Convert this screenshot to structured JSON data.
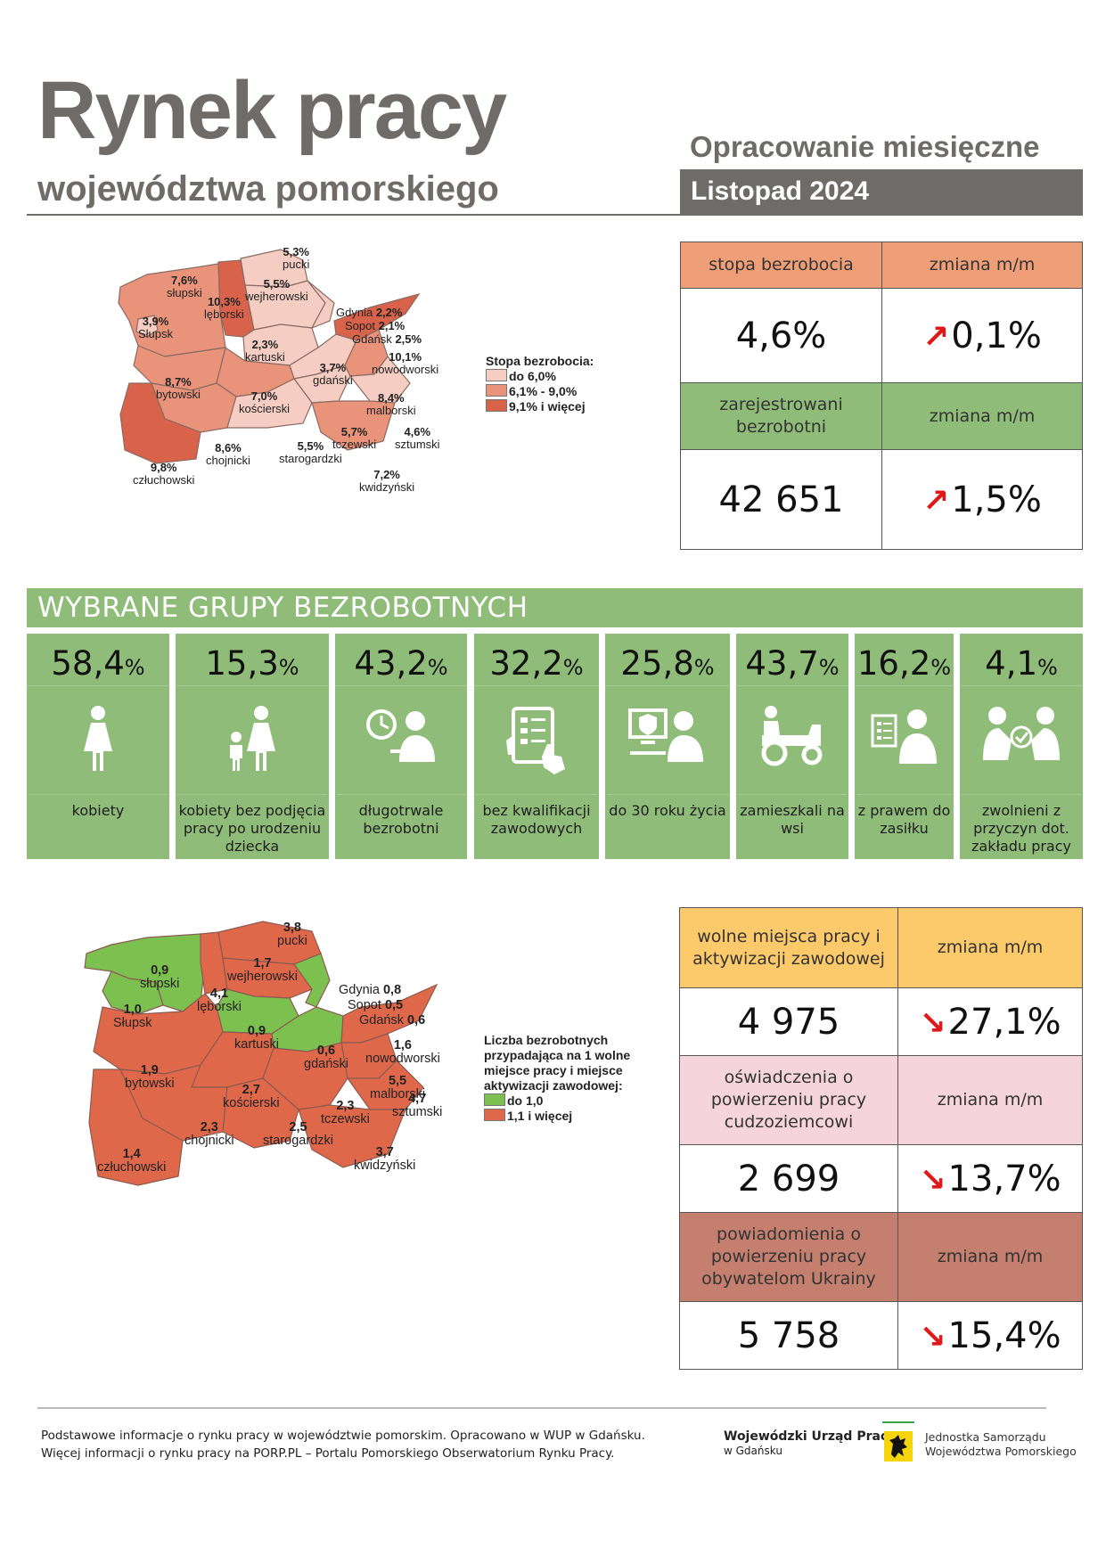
{
  "header": {
    "title": "Rynek pracy",
    "subtitle": "województwa pomorskiego",
    "report_type": "Opracowanie miesięczne",
    "period": "Listopad 2024"
  },
  "map_unemployment": {
    "legend_title": "Stopa bezrobocia:",
    "legend_items": [
      {
        "label": "do 6,0%",
        "color": "#f6cdc2"
      },
      {
        "label": "6,1% - 9,0%",
        "color": "#e8937a"
      },
      {
        "label": "9,1% i więcej",
        "color": "#d8634a"
      }
    ],
    "regions": [
      {
        "name": "pucki",
        "value": "5,3%"
      },
      {
        "name": "słupski",
        "value": "7,6%"
      },
      {
        "name": "wejherowski",
        "value": "5,5%"
      },
      {
        "name": "lęborski",
        "value": "10,3%"
      },
      {
        "name": "Słupsk",
        "value": "3,9%"
      },
      {
        "name": "Gdynia",
        "value": "2,2%"
      },
      {
        "name": "Sopot",
        "value": "2,1%"
      },
      {
        "name": "Gdańsk",
        "value": "2,5%"
      },
      {
        "name": "kartuski",
        "value": "2,3%"
      },
      {
        "name": "nowodworski",
        "value": "10,1%"
      },
      {
        "name": "bytowski",
        "value": "8,7%"
      },
      {
        "name": "gdański",
        "value": "3,7%"
      },
      {
        "name": "kościerski",
        "value": "7,0%"
      },
      {
        "name": "malborski",
        "value": "8,4%"
      },
      {
        "name": "tczewski",
        "value": "5,7%"
      },
      {
        "name": "sztumski",
        "value": "4,6%"
      },
      {
        "name": "chojnicki",
        "value": "8,6%"
      },
      {
        "name": "starogardzki",
        "value": "5,5%"
      },
      {
        "name": "człuchowski",
        "value": "9,8%"
      },
      {
        "name": "kwidzyński",
        "value": "7,2%"
      }
    ]
  },
  "stats_top": {
    "rows": [
      {
        "header": "stopa bezrobocia",
        "change_header": "zmiana m/m",
        "value": "4,6%",
        "change": "0,1%",
        "direction": "up",
        "header_color": "#ef9f78"
      },
      {
        "header": "zarejestrowani bezrobotni",
        "change_header": "zmiana m/m",
        "value": "42 651",
        "change": "1,5%",
        "direction": "up",
        "header_color": "#8fbc78"
      }
    ]
  },
  "groups": {
    "title": "WYBRANE GRUPY BEZROBOTNYCH",
    "items": [
      {
        "value": "58,4",
        "unit": "%",
        "icon": "woman-icon",
        "label": "kobiety"
      },
      {
        "value": "15,3",
        "unit": "%",
        "icon": "mother-child-icon",
        "label": "kobiety bez podjęcia pracy po urodzeniu dziecka"
      },
      {
        "value": "43,2",
        "unit": "%",
        "icon": "clock-person-icon",
        "label": "długotrwale bezrobotni"
      },
      {
        "value": "32,2",
        "unit": "%",
        "icon": "tablet-checklist-icon",
        "label": "bez kwalifikacji zawodowych"
      },
      {
        "value": "25,8",
        "unit": "%",
        "icon": "young-person-computer-icon",
        "label": "do 30 roku życia"
      },
      {
        "value": "43,7",
        "unit": "%",
        "icon": "tractor-icon",
        "label": "zamieszkali na wsi"
      },
      {
        "value": "16,2",
        "unit": "%",
        "icon": "benefit-person-icon",
        "label": "z prawem do zasiłku"
      },
      {
        "value": "4,1",
        "unit": "%",
        "icon": "dismissed-people-icon",
        "label": "zwolnieni z przyczyn dot. zakładu pracy"
      }
    ]
  },
  "map_offers": {
    "legend_title": "Liczba bezrobotnych przypadająca na 1 wolne miejsce pracy i miejsce aktywizacji zawodowej:",
    "legend_items": [
      {
        "label": "do 1,0",
        "color": "#7cc04f"
      },
      {
        "label": "1,1 i więcej",
        "color": "#e0684a"
      }
    ],
    "regions": [
      {
        "name": "pucki",
        "value": "3,8"
      },
      {
        "name": "słupski",
        "value": "0,9"
      },
      {
        "name": "wejherowski",
        "value": "1,7"
      },
      {
        "name": "lęborski",
        "value": "4,1"
      },
      {
        "name": "Słupsk",
        "value": "1,0"
      },
      {
        "name": "Gdynia",
        "value": "0,8"
      },
      {
        "name": "Sopot",
        "value": "0,5"
      },
      {
        "name": "Gdańsk",
        "value": "0,6"
      },
      {
        "name": "kartuski",
        "value": "0,9"
      },
      {
        "name": "gdański",
        "value": "0,6"
      },
      {
        "name": "nowodworski",
        "value": "1,6"
      },
      {
        "name": "bytowski",
        "value": "1,9"
      },
      {
        "name": "kościerski",
        "value": "2,7"
      },
      {
        "name": "malborski",
        "value": "5,5"
      },
      {
        "name": "tczewski",
        "value": "2,3"
      },
      {
        "name": "sztumski",
        "value": "4,7"
      },
      {
        "name": "chojnicki",
        "value": "2,3"
      },
      {
        "name": "starogardzki",
        "value": "2,5"
      },
      {
        "name": "człuchowski",
        "value": "1,4"
      },
      {
        "name": "kwidzyński",
        "value": "3,7"
      }
    ]
  },
  "stats_bottom": {
    "rows": [
      {
        "header": "wolne miejsca pracy i aktywizacji zawodowej",
        "change_header": "zmiana m/m",
        "value": "4 975",
        "change": "27,1%",
        "direction": "down",
        "header_color": "#fcc96b"
      },
      {
        "header": "oświadczenia o powierzeniu pracy cudzoziemcowi",
        "change_header": "zmiana m/m",
        "value": "2 699",
        "change": "13,7%",
        "direction": "down",
        "header_color": "#f5d4de"
      },
      {
        "header": "powiadomienia o powierzeniu pracy obywatelom Ukrainy",
        "change_header": "zmiana m/m",
        "value": "5 758",
        "change": "15,4%",
        "direction": "down",
        "header_color": "#c47f6e"
      }
    ]
  },
  "footer": {
    "line1": "Podstawowe informacje o rynku pracy w województwie pomorskim. Opracowano w WUP w Gdańsku.",
    "line2": "Więcej informacji o rynku pracy na PORP.PL – Portalu Pomorskiego Obserwatorium Rynku Pracy.",
    "wup_name": "Wojewódzki Urząd Pracy",
    "wup_city": "w Gdańsku",
    "js_line1": "Jednostka Samorządu",
    "js_line2": "Województwa Pomorskiego"
  }
}
